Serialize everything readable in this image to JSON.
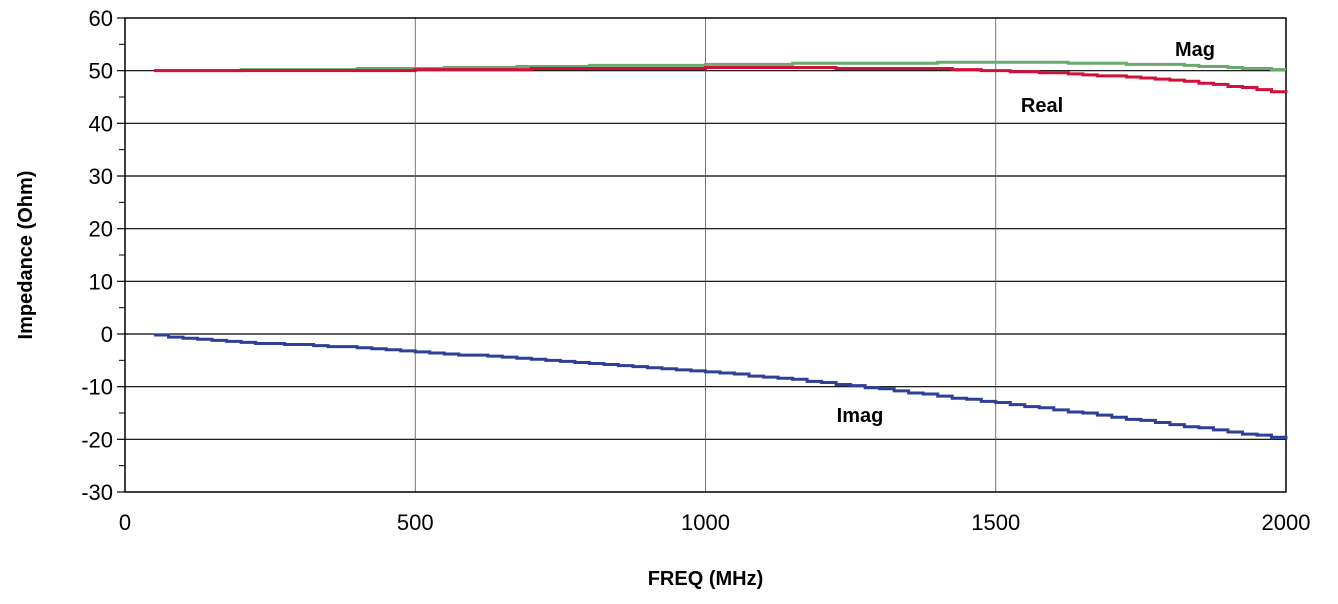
{
  "chart_data": {
    "type": "line",
    "xlabel": "FREQ (MHz)",
    "ylabel": "Impedance (Ohm)",
    "xlim": [
      0,
      2000
    ],
    "ylim": [
      -30,
      60
    ],
    "xticks": [
      0,
      500,
      1000,
      1500,
      2000
    ],
    "yticks": [
      -30,
      -20,
      -10,
      0,
      10,
      20,
      30,
      40,
      50,
      60
    ],
    "grid": true,
    "legend": "none",
    "x": [
      50,
      200,
      400,
      600,
      800,
      1000,
      1200,
      1400,
      1600,
      1800,
      2000
    ],
    "series": [
      {
        "name": "Mag",
        "color": "#6aaa6a",
        "values": [
          50.0,
          50.1,
          50.3,
          50.6,
          50.9,
          51.1,
          51.4,
          51.5,
          51.5,
          51.1,
          50.1
        ]
      },
      {
        "name": "Real",
        "color": "#d0103a",
        "values": [
          50.0,
          50.0,
          50.0,
          50.2,
          50.4,
          50.5,
          50.5,
          50.3,
          49.6,
          48.2,
          45.8
        ]
      },
      {
        "name": "Imag",
        "color": "#2e3f99",
        "values": [
          -0.3,
          -1.6,
          -2.6,
          -4.1,
          -5.6,
          -7.2,
          -9.2,
          -11.8,
          -14.4,
          -17.2,
          -20.0
        ]
      }
    ]
  }
}
